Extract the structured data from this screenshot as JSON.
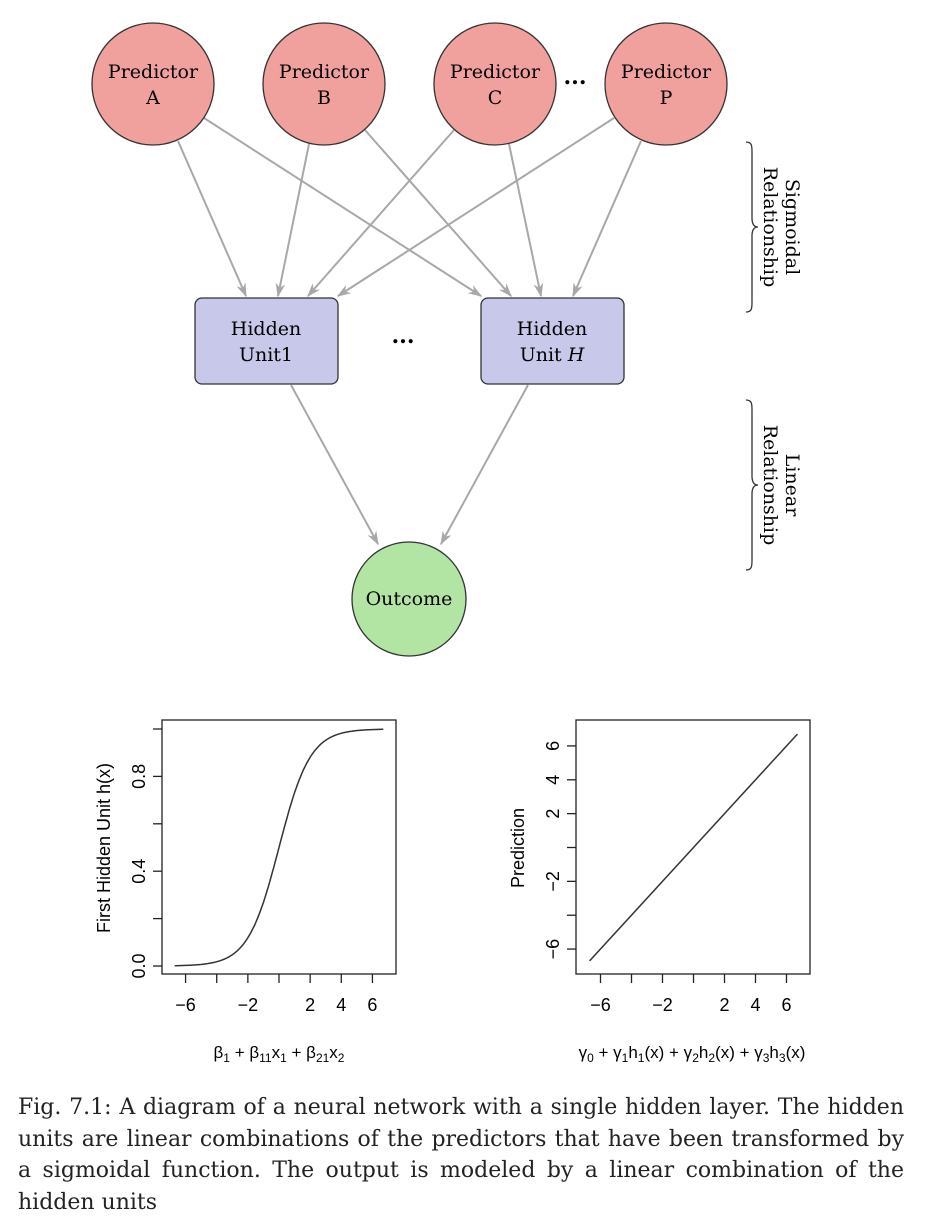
{
  "diagram": {
    "predictors": [
      {
        "line1": "Predictor",
        "line2": "A"
      },
      {
        "line1": "Predictor",
        "line2": "B"
      },
      {
        "line1": "Predictor",
        "line2": "C"
      },
      {
        "line1": "Predictor",
        "line2": "P"
      }
    ],
    "predictor_ellipsis": "...",
    "hidden_units": [
      {
        "line1": "Hidden",
        "line2": "Unit1",
        "line2_italic": ""
      },
      {
        "line1": "Hidden",
        "line2": "Unit ",
        "line2_italic": "H"
      }
    ],
    "hidden_ellipsis": "...",
    "outcome": "Outcome",
    "braces": [
      {
        "line1": "Sigmoidal",
        "line2": "Relationship"
      },
      {
        "line1": "Linear",
        "line2": "Relationship"
      }
    ],
    "colors": {
      "predictor_fill": "#f0a19e",
      "hidden_fill": "#c8c8ea",
      "outcome_fill": "#b2e4a4",
      "arrow": "#a8a8a8"
    }
  },
  "chart_data": [
    {
      "type": "line",
      "title": "",
      "xlabel": "β1 + β11x1 + β21x2",
      "ylabel": "First Hidden Unit h(x)",
      "xlim": [
        -7,
        7
      ],
      "ylim": [
        0,
        1
      ],
      "x_ticks": [
        -6,
        -4,
        -2,
        0,
        2,
        4,
        6
      ],
      "x_tick_labels": [
        "−6",
        "",
        "−2",
        "",
        "2",
        "4",
        "6"
      ],
      "y_ticks": [
        0,
        0.2,
        0.4,
        0.6,
        0.8,
        1.0
      ],
      "y_tick_labels": [
        "0.0",
        "",
        "0.4",
        "",
        "0.8",
        ""
      ],
      "series": [
        {
          "function": "1/(1+exp(-x))",
          "x_range": [
            -6.7,
            6.7
          ]
        }
      ]
    },
    {
      "type": "line",
      "title": "",
      "xlabel": "γ0 + γ1h1(x) + γ2h2(x) + γ3h3(x)",
      "ylabel": "Prediction",
      "xlim": [
        -7,
        7
      ],
      "ylim": [
        -7,
        7
      ],
      "x_ticks": [
        -6,
        -4,
        -2,
        0,
        2,
        4,
        6
      ],
      "x_tick_labels": [
        "−6",
        "",
        "−2",
        "",
        "2",
        "4",
        "6"
      ],
      "y_ticks": [
        -6,
        -4,
        -2,
        0,
        2,
        4,
        6
      ],
      "y_tick_labels": [
        "−6",
        "",
        "−2",
        "",
        "2",
        "4",
        "6"
      ],
      "series": [
        {
          "x": [
            -6.7,
            6.7
          ],
          "y": [
            -6.7,
            6.7
          ]
        }
      ]
    }
  ],
  "caption": {
    "label": "Fig. 7.1:",
    "text": "A diagram of a neural network with a single hidden layer. The hidden units are linear combinations of the predictors that have been transformed by a sigmoidal function. The output is modeled by a linear combination of the hidden units"
  }
}
